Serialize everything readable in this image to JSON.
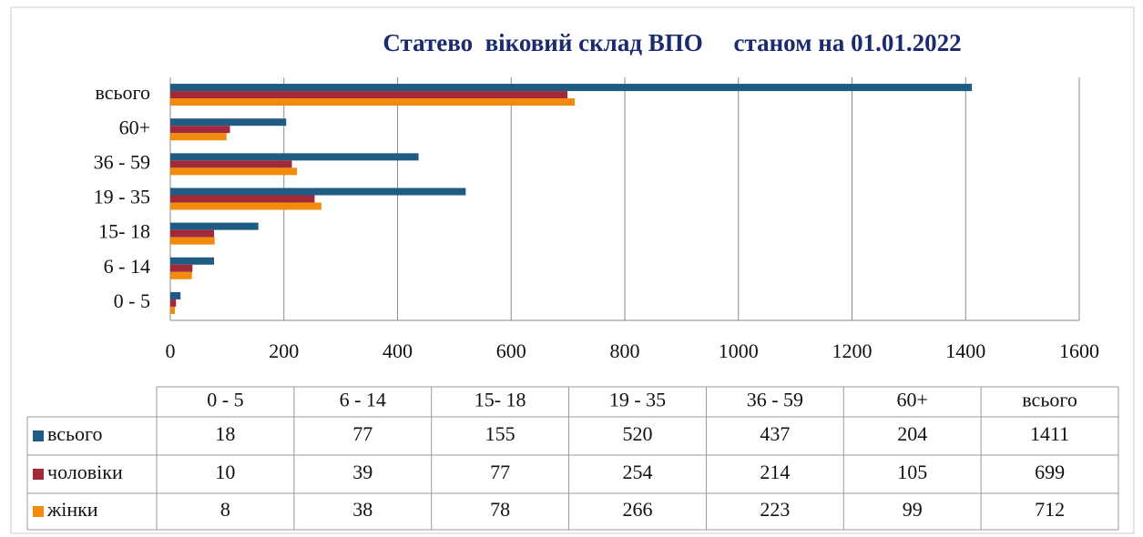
{
  "chart_data": {
    "type": "bar",
    "orientation": "horizontal",
    "title": "Статево  віковий склад ВПО     станом на 01.01.2022",
    "categories": [
      "0 - 5",
      "6 - 14",
      "15- 18",
      "19 - 35",
      "36 - 59",
      "60+",
      "всього"
    ],
    "series": [
      {
        "name": "всього",
        "color": "#1f5b82",
        "values": [
          18,
          77,
          155,
          520,
          437,
          204,
          1411
        ]
      },
      {
        "name": "чоловіки",
        "color": "#a3283a",
        "values": [
          10,
          39,
          77,
          254,
          214,
          105,
          699
        ]
      },
      {
        "name": "жінки",
        "color": "#f28a0c",
        "values": [
          8,
          38,
          78,
          266,
          223,
          99,
          712
        ]
      }
    ],
    "xlim": [
      0,
      1600
    ],
    "xticks": [
      0,
      200,
      400,
      600,
      800,
      1000,
      1200,
      1400,
      1600
    ],
    "grid": true,
    "data_table": true
  }
}
